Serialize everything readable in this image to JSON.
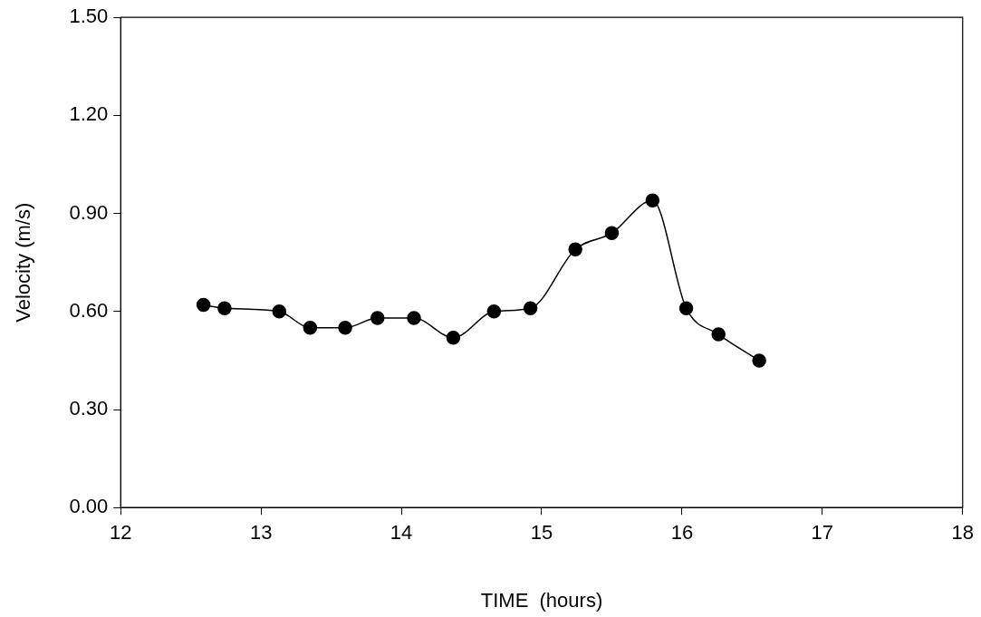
{
  "chart_data": {
    "type": "line",
    "xlabel": "TIME  (hours)",
    "ylabel": "Velocity (m/s)",
    "xlim": [
      12,
      18
    ],
    "xticks": [
      12,
      13,
      14,
      15,
      16,
      17,
      18
    ],
    "ylim": [
      0,
      1.5
    ],
    "yticks": [
      {
        "value": 0,
        "label": "0.00"
      },
      {
        "value": 0.3,
        "label": "0.30"
      },
      {
        "value": 0.6,
        "label": "0.60"
      },
      {
        "value": 0.9,
        "label": "0.90"
      },
      {
        "value": 1.2,
        "label": "1.20"
      },
      {
        "value": 1.5,
        "label": "1.50"
      }
    ],
    "x": [
      12.59,
      12.74,
      13.13,
      13.35,
      13.6,
      13.83,
      14.09,
      14.37,
      14.66,
      14.92,
      15.24,
      15.5,
      15.79,
      16.03,
      16.26,
      16.55
    ],
    "series": [
      {
        "color": "#000000",
        "values": [
          0.62,
          0.61,
          0.6,
          0.55,
          0.55,
          0.58,
          0.58,
          0.52,
          0.6,
          0.61,
          0.79,
          0.84,
          0.94,
          0.61,
          0.53,
          0.45
        ]
      }
    ],
    "marker": "circle",
    "line_style": "solid",
    "grid": false,
    "legend": false
  }
}
